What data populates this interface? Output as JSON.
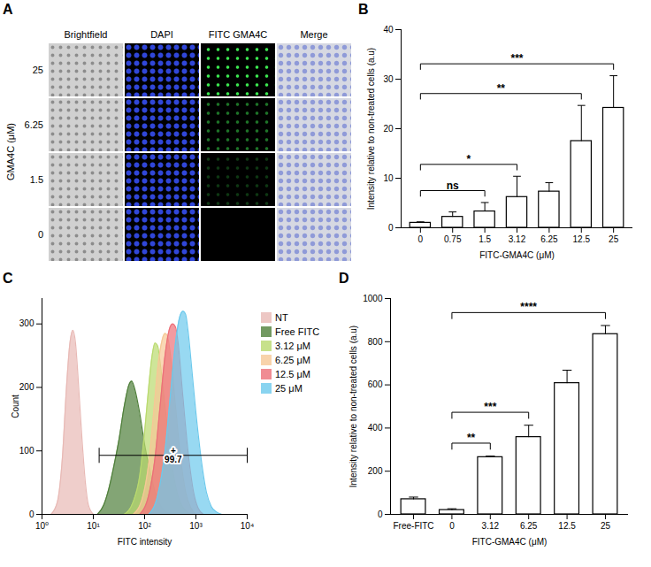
{
  "image_panel": {
    "panel": "A",
    "columns": [
      "Brightfield",
      "DAPI",
      "FITC GMA4C",
      "Merge"
    ],
    "rows": [
      "25",
      "6.25",
      "1.5",
      "0"
    ],
    "row_label": "GMA4C (μM)"
  },
  "chart_data": [
    {
      "panel": "B",
      "type": "bar",
      "categories": [
        "0",
        "0.75",
        "1.5",
        "3.12",
        "6.25",
        "12.5",
        "25"
      ],
      "values": [
        1,
        2.2,
        3.3,
        6.2,
        7.3,
        17.5,
        24.2
      ],
      "errors": [
        0.2,
        1.0,
        1.8,
        4.2,
        1.8,
        7.2,
        6.5
      ],
      "color": "#ffffff",
      "x_label": "FITC-GMA4C (μM)",
      "y_label": "Intensity relative to non-treated cells (a.u)",
      "ylim": [
        0,
        40
      ],
      "yticks": [
        0,
        10,
        20,
        30,
        40
      ],
      "grid": false,
      "significance": [
        {
          "from": "0",
          "to": "1.5",
          "label": "ns"
        },
        {
          "from": "0",
          "to": "3.12",
          "label": "*"
        },
        {
          "from": "0",
          "to": "12.5",
          "label": "**"
        },
        {
          "from": "0",
          "to": "25",
          "label": "***"
        }
      ]
    },
    {
      "panel": "C",
      "type": "area",
      "x_label": "FITC intensity",
      "y_label": "Count",
      "log": "x",
      "xlim": [
        1,
        10000
      ],
      "xticks": [
        {
          "value": 1,
          "label": "10⁰"
        },
        {
          "value": 10,
          "label": "10¹"
        },
        {
          "value": 100,
          "label": "10²"
        },
        {
          "value": 1000,
          "label": "10³"
        },
        {
          "value": 10000,
          "label": "10⁴"
        }
      ],
      "ylim": [
        0,
        340
      ],
      "yticks": [
        0,
        100,
        200,
        300
      ],
      "grid": false,
      "legend": "right",
      "series": [
        {
          "name": "NT",
          "color": "#e8b9b5",
          "x": [
            1.5,
            2,
            2.5,
            3,
            3.5,
            4,
            4.5,
            5,
            6,
            7,
            8,
            10
          ],
          "values": [
            0,
            20,
            90,
            200,
            270,
            290,
            270,
            220,
            120,
            50,
            15,
            0
          ]
        },
        {
          "name": "Free FITC",
          "color": "#4f7f3a",
          "x": [
            12,
            16,
            20,
            25,
            32,
            40,
            50,
            56,
            63,
            80,
            100,
            130,
            160,
            200,
            250,
            320
          ],
          "values": [
            0,
            15,
            40,
            75,
            120,
            170,
            205,
            210,
            200,
            160,
            110,
            65,
            35,
            15,
            5,
            0
          ]
        },
        {
          "name": "3.12 μM",
          "color": "#b9da6e",
          "x": [
            40,
            60,
            80,
            100,
            120,
            140,
            160,
            180,
            200,
            250,
            320,
            400,
            500,
            650,
            800
          ],
          "values": [
            0,
            20,
            60,
            130,
            200,
            250,
            270,
            265,
            240,
            170,
            95,
            45,
            18,
            5,
            0
          ]
        },
        {
          "name": "6.25 μM",
          "color": "#f6c896",
          "x": [
            60,
            90,
            120,
            150,
            180,
            220,
            250,
            280,
            320,
            400,
            500,
            630,
            800,
            1000
          ],
          "values": [
            0,
            25,
            80,
            160,
            230,
            275,
            285,
            280,
            250,
            170,
            90,
            35,
            10,
            0
          ]
        },
        {
          "name": "12.5 μM",
          "color": "#ec6f78",
          "x": [
            80,
            120,
            160,
            200,
            250,
            300,
            350,
            400,
            450,
            550,
            700,
            900,
            1100,
            1400
          ],
          "values": [
            0,
            30,
            90,
            170,
            250,
            290,
            300,
            295,
            270,
            190,
            100,
            35,
            10,
            0
          ]
        },
        {
          "name": "25 μM",
          "color": "#6cc9ec",
          "x": [
            120,
            180,
            250,
            320,
            400,
            480,
            560,
            630,
            700,
            850,
            1000,
            1300,
            1600,
            2000,
            2500,
            3200
          ],
          "values": [
            0,
            30,
            100,
            190,
            270,
            310,
            320,
            315,
            290,
            220,
            160,
            80,
            35,
            12,
            4,
            0
          ]
        }
      ],
      "gate": {
        "x": [
          13,
          10000
        ],
        "y": 93,
        "labels": [
          "+",
          "99.7"
        ]
      }
    },
    {
      "panel": "D",
      "type": "bar",
      "categories": [
        "Free-FITC",
        "0",
        "3.12",
        "6.25",
        "12.5",
        "25"
      ],
      "values": [
        70,
        20,
        265,
        358,
        608,
        835
      ],
      "errors": [
        10,
        6,
        5,
        55,
        60,
        40
      ],
      "color": "#ffffff",
      "x_label": "FITC-GMA4C (μM)",
      "y_label": "Intensity relative to non-treated cells (a.u)",
      "ylim": [
        0,
        1000
      ],
      "yticks": [
        0,
        200,
        400,
        600,
        800,
        1000
      ],
      "grid": false,
      "significance": [
        {
          "from": "0",
          "to": "3.12",
          "label": "**"
        },
        {
          "from": "0",
          "to": "6.25",
          "label": "***"
        },
        {
          "from": "0",
          "to": "25",
          "label": "****"
        }
      ]
    }
  ]
}
